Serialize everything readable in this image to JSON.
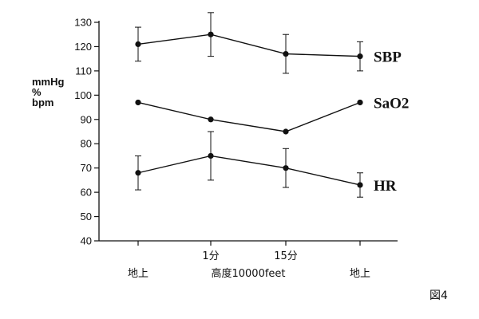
{
  "chart_data": {
    "type": "line",
    "ylabel_lines": [
      "mmHg",
      "%",
      "bpm"
    ],
    "ylim": [
      40,
      130
    ],
    "yticks": [
      40,
      50,
      60,
      70,
      80,
      90,
      100,
      110,
      120,
      130
    ],
    "x_points": 4,
    "xtick_top": [
      "",
      "1分",
      "15分",
      ""
    ],
    "xtick_bottom": [
      "地上",
      "高度10000feet",
      "地上"
    ],
    "series": [
      {
        "name": "SBP",
        "values": [
          121,
          125,
          117,
          116
        ],
        "err": [
          7,
          9,
          8,
          6
        ]
      },
      {
        "name": "SaO2",
        "values": [
          97,
          90,
          85,
          97
        ],
        "err": [
          0,
          0,
          0,
          0
        ]
      },
      {
        "name": "HR",
        "values": [
          68,
          75,
          70,
          63
        ],
        "err": [
          7,
          10,
          8,
          5
        ]
      }
    ],
    "figure_label": "図4",
    "grid": false
  }
}
